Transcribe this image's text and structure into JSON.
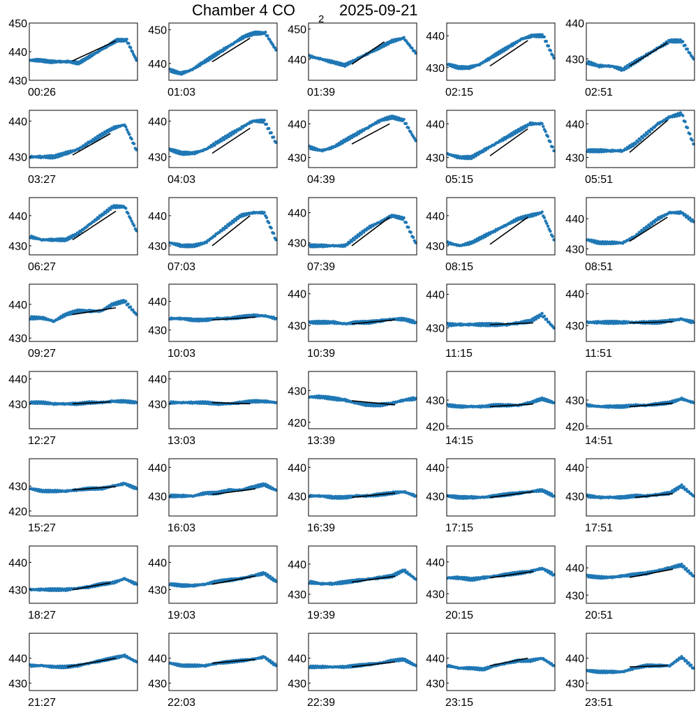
{
  "title": {
    "main": "Chamber 4 CO",
    "subscript": "2",
    "date": "2025-09-21"
  },
  "colors": {
    "points": "#1f77b4",
    "fit": "#000000",
    "axes": "#000000"
  },
  "chart_data": [
    {
      "type": "scatter",
      "label": "00:26",
      "ylim": [
        430,
        450
      ],
      "yticks": [
        430,
        440,
        450
      ],
      "y": [
        437,
        437,
        436.5,
        436.5,
        436.5,
        436,
        438,
        440,
        442,
        444,
        444,
        437
      ],
      "fit": [
        0.4,
        0.8,
        436.8,
        443.8
      ]
    },
    {
      "type": "scatter",
      "label": "01:03",
      "ylim": [
        435,
        452
      ],
      "yticks": [
        440,
        450
      ],
      "y": [
        438,
        437,
        438,
        440,
        442,
        444,
        446,
        448,
        449,
        449,
        444
      ],
      "fit": [
        0.4,
        0.75,
        440.5,
        447.5
      ]
    },
    {
      "type": "scatter",
      "label": "01:39",
      "ylim": [
        433,
        452
      ],
      "yticks": [
        440,
        450
      ],
      "y": [
        441,
        440,
        439,
        438,
        440,
        442,
        444,
        446,
        447,
        442
      ],
      "fit": [
        0.4,
        0.7,
        438.3,
        445.8
      ]
    },
    {
      "type": "scatter",
      "label": "02:15",
      "ylim": [
        426,
        444
      ],
      "yticks": [
        430,
        440
      ],
      "y": [
        431,
        430,
        430,
        431,
        433,
        435,
        437,
        439,
        440,
        440,
        433
      ],
      "fit": [
        0.4,
        0.75,
        430.5,
        438.5
      ]
    },
    {
      "type": "scatter",
      "label": "02:51",
      "ylim": [
        424,
        440
      ],
      "yticks": [
        430,
        440
      ],
      "y": [
        429,
        428,
        428,
        427,
        429,
        431,
        433,
        435,
        435,
        430
      ],
      "fit": [
        0.4,
        0.75,
        428,
        434.5
      ]
    },
    {
      "type": "scatter",
      "label": "03:27",
      "ylim": [
        427,
        443
      ],
      "yticks": [
        430,
        440
      ],
      "y": [
        430,
        430,
        430,
        431,
        432,
        434,
        436,
        438,
        439,
        432
      ],
      "fit": [
        0.4,
        0.75,
        430.5,
        436.5
      ]
    },
    {
      "type": "scatter",
      "label": "04:03",
      "ylim": [
        427,
        443
      ],
      "yticks": [
        430,
        440
      ],
      "y": [
        432,
        431,
        431,
        432,
        434,
        436,
        438,
        440,
        440,
        434
      ],
      "fit": [
        0.4,
        0.75,
        431,
        438
      ]
    },
    {
      "type": "scatter",
      "label": "04:39",
      "ylim": [
        427,
        444
      ],
      "yticks": [
        430,
        440
      ],
      "y": [
        433,
        432,
        433,
        435,
        437,
        439,
        441,
        442,
        441,
        435
      ],
      "fit": [
        0.4,
        0.75,
        434,
        440
      ]
    },
    {
      "type": "scatter",
      "label": "05:15",
      "ylim": [
        427,
        444
      ],
      "yticks": [
        430,
        440
      ],
      "y": [
        431,
        430,
        430,
        432,
        434,
        436,
        438,
        440,
        440,
        432
      ],
      "fit": [
        0.4,
        0.75,
        430.5,
        438.5
      ]
    },
    {
      "type": "scatter",
      "label": "05:51",
      "ylim": [
        427,
        444
      ],
      "yticks": [
        430,
        440
      ],
      "y": [
        432,
        432,
        432,
        432,
        434,
        437,
        440,
        442,
        443,
        434
      ],
      "fit": [
        0.4,
        0.75,
        431.5,
        441
      ]
    },
    {
      "type": "scatter",
      "label": "06:27",
      "ylim": [
        427,
        446
      ],
      "yticks": [
        430,
        440
      ],
      "y": [
        433,
        432,
        432,
        432,
        434,
        437,
        440,
        443,
        443,
        435
      ],
      "fit": [
        0.4,
        0.8,
        432,
        441.5
      ]
    },
    {
      "type": "scatter",
      "label": "07:03",
      "ylim": [
        427,
        446
      ],
      "yticks": [
        430,
        440
      ],
      "y": [
        431,
        430,
        430,
        431,
        434,
        437,
        440,
        441,
        441,
        432
      ],
      "fit": [
        0.4,
        0.75,
        430,
        440
      ]
    },
    {
      "type": "scatter",
      "label": "07:39",
      "ylim": [
        426,
        445
      ],
      "yticks": [
        430,
        440
      ],
      "y": [
        429,
        429,
        429,
        429,
        432,
        435,
        437,
        439,
        438,
        430
      ],
      "fit": [
        0.4,
        0.75,
        429,
        438.5
      ]
    },
    {
      "type": "scatter",
      "label": "08:15",
      "ylim": [
        427,
        446
      ],
      "yticks": [
        430,
        440
      ],
      "y": [
        431,
        430,
        431,
        433,
        435,
        437,
        439,
        440,
        441,
        432
      ],
      "fit": [
        0.4,
        0.75,
        430.5,
        439.5
      ]
    },
    {
      "type": "scatter",
      "label": "08:51",
      "ylim": [
        428,
        447
      ],
      "yticks": [
        430,
        440
      ],
      "y": [
        433,
        432,
        432,
        432,
        434,
        437,
        440,
        442,
        442,
        439
      ],
      "fit": [
        0.4,
        0.75,
        432.5,
        440.5
      ]
    },
    {
      "type": "scatter",
      "label": "09:27",
      "ylim": [
        429,
        446
      ],
      "yticks": [
        430,
        440
      ],
      "y": [
        436,
        436,
        435,
        437,
        438,
        438,
        438,
        440,
        441,
        437
      ],
      "fit": [
        0.4,
        0.8,
        437,
        439
      ]
    },
    {
      "type": "scatter",
      "label": "10:03",
      "ylim": [
        426,
        446
      ],
      "yticks": [
        430,
        440
      ],
      "y": [
        434,
        434,
        433.5,
        433.5,
        434,
        434,
        434.5,
        435,
        435,
        434
      ],
      "fit": [
        0.4,
        0.8,
        433.5,
        434.5
      ]
    },
    {
      "type": "scatter",
      "label": "10:39",
      "ylim": [
        425,
        443
      ],
      "yticks": [
        430,
        440
      ],
      "y": [
        431,
        431,
        431,
        430.5,
        431,
        431,
        431.5,
        432,
        432,
        431
      ],
      "fit": [
        0.4,
        0.8,
        430.5,
        431.8
      ]
    },
    {
      "type": "scatter",
      "label": "11:15",
      "ylim": [
        426,
        443
      ],
      "yticks": [
        430,
        440
      ],
      "y": [
        431,
        431,
        431,
        431,
        431,
        431,
        431.5,
        432,
        434,
        430
      ],
      "fit": [
        0.4,
        0.8,
        431,
        431.5
      ]
    },
    {
      "type": "scatter",
      "label": "11:51",
      "ylim": [
        425,
        443
      ],
      "yticks": [
        430,
        440
      ],
      "y": [
        431,
        431,
        431,
        431,
        431,
        431,
        431,
        431.5,
        432,
        431
      ],
      "fit": [
        0.4,
        0.8,
        430.8,
        431.2
      ]
    },
    {
      "type": "scatter",
      "label": "12:27",
      "ylim": [
        420,
        443
      ],
      "yticks": [
        430,
        440
      ],
      "y": [
        430.5,
        430.5,
        430,
        430,
        430,
        430.5,
        430.5,
        431,
        431,
        430.5
      ],
      "fit": [
        0.4,
        0.75,
        430,
        430.8
      ]
    },
    {
      "type": "scatter",
      "label": "13:03",
      "ylim": [
        420,
        443
      ],
      "yticks": [
        430,
        440
      ],
      "y": [
        430.5,
        430.5,
        430.5,
        430.5,
        430,
        430,
        430.5,
        431,
        431,
        430.5
      ],
      "fit": [
        0.4,
        0.75,
        430.5,
        430
      ]
    },
    {
      "type": "scatter",
      "label": "13:39",
      "ylim": [
        418,
        436
      ],
      "yticks": [
        420,
        430
      ],
      "y": [
        428,
        428,
        427.5,
        427,
        426,
        425.5,
        425.5,
        426,
        427,
        427.5
      ],
      "fit": [
        0.4,
        0.8,
        426.8,
        425.5
      ]
    },
    {
      "type": "scatter",
      "label": "14:15",
      "ylim": [
        419,
        441
      ],
      "yticks": [
        420,
        430
      ],
      "y": [
        428,
        427.5,
        427.5,
        427.5,
        428,
        428,
        428,
        429,
        430.5,
        429
      ],
      "fit": [
        0.4,
        0.8,
        427.5,
        428.5
      ]
    },
    {
      "type": "scatter",
      "label": "14:51",
      "ylim": [
        419,
        441
      ],
      "yticks": [
        420,
        430
      ],
      "y": [
        428,
        427.5,
        427.5,
        427.5,
        428,
        428,
        428.5,
        429,
        430.5,
        429
      ],
      "fit": [
        0.4,
        0.8,
        427.5,
        428.8
      ]
    },
    {
      "type": "scatter",
      "label": "15:27",
      "ylim": [
        418,
        441
      ],
      "yticks": [
        420,
        430
      ],
      "y": [
        429,
        428,
        428,
        428,
        428.5,
        429,
        429,
        430,
        431,
        429
      ],
      "fit": [
        0.4,
        0.8,
        428.5,
        429.8
      ]
    },
    {
      "type": "scatter",
      "label": "16:03",
      "ylim": [
        423,
        443
      ],
      "yticks": [
        430,
        440
      ],
      "y": [
        430,
        430,
        430,
        431,
        431,
        432,
        432,
        433,
        434,
        432
      ],
      "fit": [
        0.4,
        0.8,
        430.5,
        432.5
      ]
    },
    {
      "type": "scatter",
      "label": "16:39",
      "ylim": [
        423,
        443
      ],
      "yticks": [
        430,
        440
      ],
      "y": [
        430,
        430,
        429.5,
        429.5,
        430,
        430,
        430.5,
        431,
        431.5,
        430
      ],
      "fit": [
        0.4,
        0.8,
        429.5,
        431
      ]
    },
    {
      "type": "scatter",
      "label": "17:15",
      "ylim": [
        423,
        443
      ],
      "yticks": [
        430,
        440
      ],
      "y": [
        430,
        429.5,
        429.5,
        429.5,
        430,
        430.5,
        431,
        431.5,
        432,
        430
      ],
      "fit": [
        0.4,
        0.8,
        429.5,
        431.5
      ]
    },
    {
      "type": "scatter",
      "label": "17:51",
      "ylim": [
        423,
        443
      ],
      "yticks": [
        430,
        440
      ],
      "y": [
        430,
        429.5,
        429.5,
        429.5,
        430,
        430,
        430.5,
        431,
        433.5,
        430
      ],
      "fit": [
        0.45,
        0.8,
        429.5,
        430.8
      ]
    },
    {
      "type": "scatter",
      "label": "18:27",
      "ylim": [
        425,
        446
      ],
      "yticks": [
        430,
        440
      ],
      "y": [
        430,
        430,
        430,
        430,
        430.5,
        431,
        432,
        432.5,
        434,
        432
      ],
      "fit": [
        0.4,
        0.75,
        430,
        432.5
      ]
    },
    {
      "type": "scatter",
      "label": "19:03",
      "ylim": [
        425,
        446
      ],
      "yticks": [
        430,
        440
      ],
      "y": [
        432,
        431.5,
        431.5,
        432,
        433,
        433.5,
        434,
        435,
        436,
        433
      ],
      "fit": [
        0.4,
        0.8,
        432,
        435
      ]
    },
    {
      "type": "scatter",
      "label": "19:39",
      "ylim": [
        427,
        446
      ],
      "yticks": [
        430,
        440
      ],
      "y": [
        434,
        433.5,
        433.5,
        434,
        434.5,
        435,
        435.5,
        436,
        438,
        435
      ],
      "fit": [
        0.4,
        0.8,
        434,
        436
      ]
    },
    {
      "type": "scatter",
      "label": "20:15",
      "ylim": [
        427,
        445
      ],
      "yticks": [
        430,
        440
      ],
      "y": [
        435,
        435,
        434.5,
        435,
        435.5,
        436,
        436.5,
        437,
        438,
        436
      ],
      "fit": [
        0.4,
        0.8,
        435,
        437
      ]
    },
    {
      "type": "scatter",
      "label": "20:51",
      "ylim": [
        427,
        448
      ],
      "yticks": [
        430,
        440
      ],
      "y": [
        437,
        436.5,
        436.5,
        437,
        437.5,
        438,
        439,
        440,
        441,
        437
      ],
      "fit": [
        0.4,
        0.8,
        436.5,
        439.5
      ]
    },
    {
      "type": "scatter",
      "label": "21:27",
      "ylim": [
        427,
        450
      ],
      "yticks": [
        430,
        440
      ],
      "y": [
        437,
        437,
        436.5,
        436.5,
        437,
        438,
        439,
        440,
        441,
        438.5
      ],
      "fit": [
        0.35,
        0.8,
        436.5,
        440
      ]
    },
    {
      "type": "scatter",
      "label": "22:03",
      "ylim": [
        427,
        450
      ],
      "yticks": [
        430,
        440
      ],
      "y": [
        438,
        437,
        437,
        437,
        438,
        438.5,
        439,
        439.5,
        440.5,
        437
      ],
      "fit": [
        0.4,
        0.8,
        438,
        439.5
      ]
    },
    {
      "type": "scatter",
      "label": "22:39",
      "ylim": [
        427,
        450
      ],
      "yticks": [
        430,
        440
      ],
      "y": [
        436.5,
        436.5,
        436.5,
        436.5,
        437,
        437.5,
        438,
        439,
        439.5,
        437
      ],
      "fit": [
        0.4,
        0.8,
        436.5,
        438.5
      ]
    },
    {
      "type": "scatter",
      "label": "23:15",
      "ylim": [
        427,
        450
      ],
      "yticks": [
        430,
        440
      ],
      "y": [
        437,
        436,
        436,
        435.5,
        437,
        438,
        439,
        439,
        440,
        437
      ],
      "fit": [
        0.4,
        0.75,
        437,
        440
      ]
    },
    {
      "type": "scatter",
      "label": "23:51",
      "ylim": [
        427,
        450
      ],
      "yticks": [
        430,
        440
      ],
      "y": [
        435,
        434.5,
        434.5,
        434.5,
        436,
        437,
        437,
        437,
        440.5,
        436
      ],
      "fit": [
        0.4,
        0.75,
        436.5,
        437
      ]
    }
  ]
}
